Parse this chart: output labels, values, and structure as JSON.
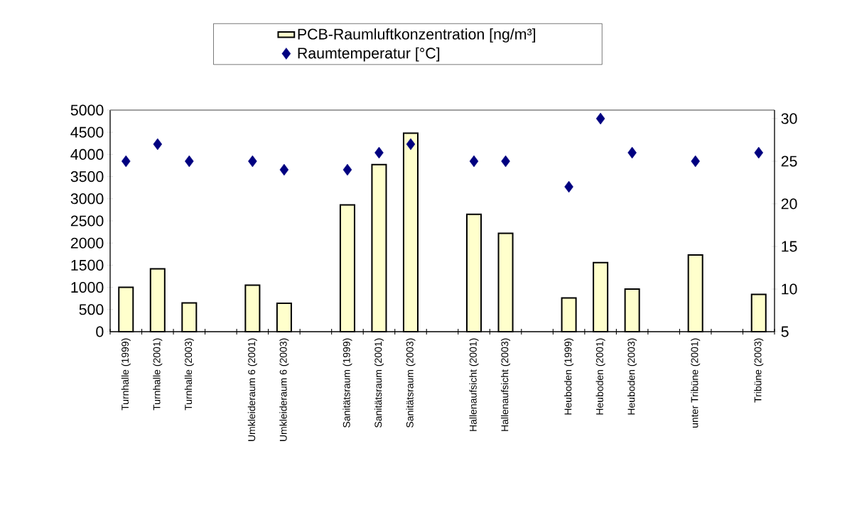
{
  "chart_data": {
    "type": "bar",
    "categories": [
      "Turnhalle (1999)",
      "Turnhalle (2001)",
      "Turnhalle (2003)",
      null,
      "Umkleideraum 6 (2001)",
      "Umkleideraum 6 (2003)",
      null,
      "Sanitätsraum (1999)",
      "Sanitätsraum (2001)",
      "Sanitätsraum (2003)",
      null,
      "Hallenaufsicht (2001)",
      "Hallenaufsicht (2003)",
      null,
      "Heuboden (1999)",
      "Heuboden (2001)",
      "Heuboden (2003)",
      null,
      "unter Tribüne (2001)",
      null,
      "Tribüne (2003)"
    ],
    "series": [
      {
        "name": "PCB-Raumluftkonzentration [ng/m³]",
        "color": "#ffffcc",
        "values": [
          1000,
          1420,
          650,
          null,
          1050,
          640,
          null,
          2860,
          3770,
          4480,
          null,
          2650,
          2220,
          null,
          760,
          1560,
          960,
          null,
          1730,
          null,
          840
        ]
      },
      {
        "name": "Raumtemperatur [°C]",
        "type": "scatter",
        "axis": "y2",
        "color": "#000080",
        "values": [
          25,
          27,
          25,
          null,
          25,
          24,
          null,
          24,
          26,
          27,
          null,
          25,
          25,
          null,
          22,
          30,
          26,
          null,
          25,
          null,
          26
        ]
      }
    ],
    "ylim": [
      0,
      5000
    ],
    "yticks": [
      0,
      500,
      1000,
      1500,
      2000,
      2500,
      3000,
      3500,
      4000,
      4500,
      5000
    ],
    "y2lim": [
      5,
      31
    ],
    "y2ticks": [
      5,
      10,
      15,
      20,
      25,
      30
    ],
    "legend": "top",
    "marker": "diamond"
  }
}
